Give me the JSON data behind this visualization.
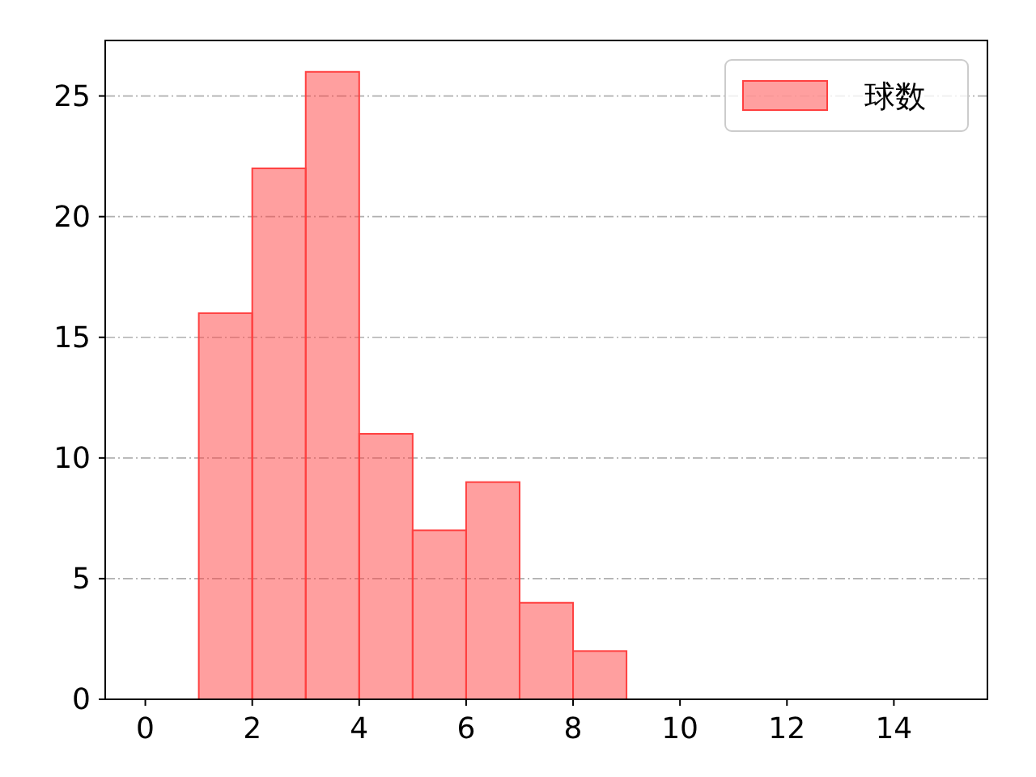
{
  "chart_data": {
    "type": "histogram",
    "bins": [
      1,
      2,
      3,
      4,
      5,
      6,
      7,
      8,
      9
    ],
    "series": [
      {
        "name": "球数",
        "color": "#ff4040",
        "values": [
          16,
          22,
          26,
          11,
          7,
          9,
          4,
          2
        ]
      }
    ],
    "xlim": [
      -0.75,
      15.75
    ],
    "ylim": [
      0,
      27.3
    ],
    "xticks": [
      0,
      2,
      4,
      6,
      8,
      10,
      12,
      14
    ],
    "yticks": [
      0,
      5,
      10,
      15,
      20,
      25
    ],
    "grid": "y",
    "legend": "top right"
  }
}
